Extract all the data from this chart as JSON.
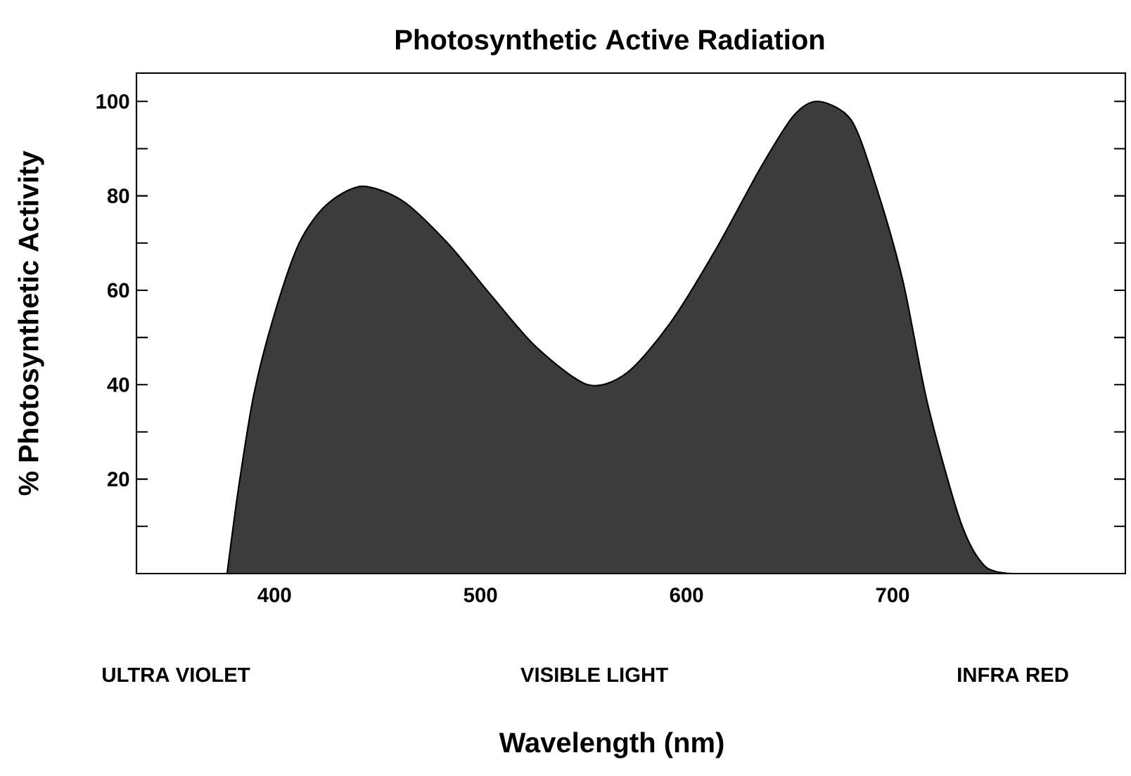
{
  "chart_data": {
    "type": "area",
    "title": "Photosynthetic Active Radiation",
    "xlabel": "Wavelength (nm)",
    "ylabel": "% Photosynthetic Activity",
    "annotations": [
      "ULTRA VIOLET",
      "VISIBLE LIGHT",
      "INFRA RED"
    ],
    "xlim": [
      333,
      813
    ],
    "ylim": [
      0,
      106
    ],
    "xticks": [
      400,
      500,
      600,
      700
    ],
    "yticks": [
      {
        "value": 10,
        "label": null
      },
      20,
      {
        "value": 30,
        "label": null
      },
      40,
      {
        "value": 50,
        "label": null
      },
      60,
      {
        "value": 70,
        "label": null
      },
      80,
      {
        "value": 90,
        "label": null
      },
      100
    ],
    "series": [
      {
        "color": "#3c3c3c",
        "x": [
          377,
          382.5,
          390,
          400,
          412,
          425,
          442,
          462,
          484,
          505,
          527,
          552,
          571,
          592,
          614,
          636,
          652,
          664,
          680,
          692,
          705,
          717,
          733,
          745,
          759
        ],
        "values": [
          0,
          18,
          38,
          55,
          70,
          78,
          82,
          79,
          70,
          59,
          48,
          40,
          42.5,
          53,
          68.5,
          86,
          97,
          100,
          96,
          82,
          62,
          36,
          11,
          1.5,
          0
        ]
      }
    ]
  }
}
